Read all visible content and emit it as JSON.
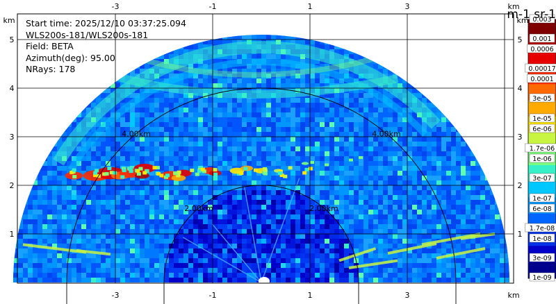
{
  "chart_data": {
    "type": "heatmap",
    "subtype": "ppi-radar-sector",
    "info_lines": [
      "Start time: 2025/12/10 03:37:25.094",
      "WLS200s-181/WLS200s-181",
      "Field: BETA",
      "Azimuth(deg): 95.00",
      "NRays: 178"
    ],
    "unit_label": "km",
    "x_ticks": [
      "-3",
      "-1",
      "1",
      "3"
    ],
    "x_tick_values": [
      -3,
      -1,
      1,
      3
    ],
    "y_ticks": [
      "1",
      "2",
      "3",
      "4",
      "5"
    ],
    "y_tick_values": [
      1,
      2,
      3,
      4,
      5
    ],
    "xlim": [
      -5,
      5
    ],
    "ylim": [
      0,
      5.5
    ],
    "max_range_km": 5.1,
    "range_rings": [
      {
        "radius_km": 2.0,
        "label": "2.00km"
      },
      {
        "radius_km": 4.0,
        "label": "4.00km"
      }
    ],
    "colorbar": {
      "title": "m-1 sr-1",
      "scale": "log",
      "tick_labels": [
        "0.003",
        "0.001",
        "0.0006",
        "0.00017",
        "0.0001",
        "3e-05",
        "1e-05",
        "6e-06",
        "1.7e-06",
        "1e-06",
        "3e-07",
        "1e-07",
        "6e-08",
        "1.7e-08",
        "1e-08",
        "3e-09",
        "1e-09"
      ],
      "colors": [
        "#7f0000",
        "#b20000",
        "#e60000",
        "#ff2a00",
        "#ff6a00",
        "#ffaa00",
        "#ffe600",
        "#c8f542",
        "#7dff7d",
        "#38f0c8",
        "#00c8ff",
        "#0096ff",
        "#0064ff",
        "#0032e6",
        "#0000c8",
        "#00008c"
      ]
    },
    "features": [
      {
        "name": "aerosol layer",
        "height_km": 2.25,
        "x_range_km": [
          -3.9,
          1.0
        ],
        "value": 0.001
      },
      {
        "name": "upper arc",
        "height_km": 4.2,
        "x_range_km": [
          -3.0,
          2.4
        ],
        "value": 3e-07
      },
      {
        "name": "low streaks",
        "height_km": 0.4,
        "x_range_km": [
          1.5,
          4.6
        ],
        "value": 1e-06
      }
    ]
  }
}
